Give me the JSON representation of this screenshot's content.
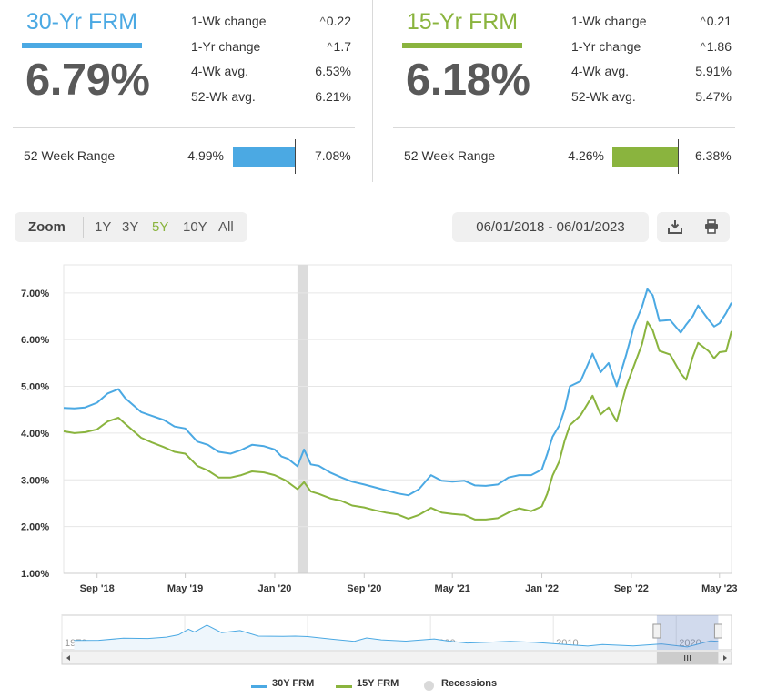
{
  "products": [
    {
      "title": "30-Yr FRM",
      "rate": "6.79%",
      "color": "#4ba9e3",
      "stats": [
        {
          "label": "1-Wk change",
          "value": "0.22",
          "caret": "^"
        },
        {
          "label": "1-Yr change",
          "value": "1.7",
          "caret": "^"
        },
        {
          "label": "4-Wk avg.",
          "value": "6.53%",
          "caret": ""
        },
        {
          "label": "52-Wk avg.",
          "value": "6.21%",
          "caret": ""
        }
      ],
      "range": {
        "label": "52 Week Range",
        "low": "4.99%",
        "high": "7.08%",
        "marker_fraction": 0.85
      }
    },
    {
      "title": "15-Yr FRM",
      "rate": "6.18%",
      "color": "#8ab43e",
      "stats": [
        {
          "label": "1-Wk change",
          "value": "0.21",
          "caret": "^"
        },
        {
          "label": "1-Yr change",
          "value": "1.86",
          "caret": "^"
        },
        {
          "label": "4-Wk avg.",
          "value": "5.91%",
          "caret": ""
        },
        {
          "label": "52-Wk avg.",
          "value": "5.47%",
          "caret": ""
        }
      ],
      "range": {
        "label": "52 Week Range",
        "low": "4.26%",
        "high": "6.38%",
        "marker_fraction": 0.9
      }
    }
  ],
  "toolbar": {
    "zoom_label": "Zoom",
    "zoom_options": [
      "1Y",
      "3Y",
      "5Y",
      "10Y",
      "All"
    ],
    "active_zoom": "5Y",
    "date_range": "06/01/2018 - 06/01/2023",
    "download_icon": "download-icon",
    "print_icon": "printer-icon"
  },
  "chart_data": {
    "type": "line",
    "y_ticks": [
      "1.00%",
      "2.00%",
      "3.00%",
      "4.00%",
      "5.00%",
      "6.00%",
      "7.00%"
    ],
    "ylim": [
      1,
      7.6
    ],
    "x_ticks": [
      {
        "label": "Sep '18",
        "t": 2018.67
      },
      {
        "label": "May '19",
        "t": 2019.33
      },
      {
        "label": "Jan '20",
        "t": 2020.0
      },
      {
        "label": "Sep '20",
        "t": 2020.67
      },
      {
        "label": "May '21",
        "t": 2021.33
      },
      {
        "label": "Jan '22",
        "t": 2022.0
      },
      {
        "label": "Sep '22",
        "t": 2022.67
      },
      {
        "label": "May '23",
        "t": 2023.33
      }
    ],
    "xlim": [
      2018.42,
      2023.42
    ],
    "recessions": [
      [
        2020.17,
        2020.25
      ]
    ],
    "series": [
      {
        "name": "30Y FRM",
        "color": "#4ba9e3",
        "points": [
          [
            2018.42,
            4.54
          ],
          [
            2018.5,
            4.53
          ],
          [
            2018.58,
            4.55
          ],
          [
            2018.67,
            4.65
          ],
          [
            2018.75,
            4.85
          ],
          [
            2018.83,
            4.94
          ],
          [
            2018.88,
            4.75
          ],
          [
            2019.0,
            4.45
          ],
          [
            2019.08,
            4.37
          ],
          [
            2019.17,
            4.28
          ],
          [
            2019.25,
            4.14
          ],
          [
            2019.33,
            4.1
          ],
          [
            2019.42,
            3.82
          ],
          [
            2019.5,
            3.75
          ],
          [
            2019.58,
            3.6
          ],
          [
            2019.67,
            3.56
          ],
          [
            2019.75,
            3.64
          ],
          [
            2019.83,
            3.75
          ],
          [
            2019.92,
            3.72
          ],
          [
            2020.0,
            3.65
          ],
          [
            2020.05,
            3.5
          ],
          [
            2020.1,
            3.45
          ],
          [
            2020.17,
            3.29
          ],
          [
            2020.22,
            3.65
          ],
          [
            2020.27,
            3.33
          ],
          [
            2020.33,
            3.3
          ],
          [
            2020.42,
            3.15
          ],
          [
            2020.5,
            3.05
          ],
          [
            2020.58,
            2.96
          ],
          [
            2020.67,
            2.9
          ],
          [
            2020.75,
            2.84
          ],
          [
            2020.83,
            2.78
          ],
          [
            2020.92,
            2.71
          ],
          [
            2021.0,
            2.67
          ],
          [
            2021.08,
            2.8
          ],
          [
            2021.17,
            3.1
          ],
          [
            2021.25,
            2.98
          ],
          [
            2021.33,
            2.96
          ],
          [
            2021.42,
            2.98
          ],
          [
            2021.5,
            2.88
          ],
          [
            2021.58,
            2.87
          ],
          [
            2021.67,
            2.9
          ],
          [
            2021.75,
            3.05
          ],
          [
            2021.83,
            3.1
          ],
          [
            2021.92,
            3.1
          ],
          [
            2022.0,
            3.22
          ],
          [
            2022.04,
            3.55
          ],
          [
            2022.08,
            3.92
          ],
          [
            2022.13,
            4.16
          ],
          [
            2022.17,
            4.5
          ],
          [
            2022.21,
            5.0
          ],
          [
            2022.29,
            5.11
          ],
          [
            2022.38,
            5.7
          ],
          [
            2022.44,
            5.3
          ],
          [
            2022.5,
            5.5
          ],
          [
            2022.56,
            5.0
          ],
          [
            2022.63,
            5.66
          ],
          [
            2022.69,
            6.29
          ],
          [
            2022.75,
            6.7
          ],
          [
            2022.79,
            7.08
          ],
          [
            2022.83,
            6.95
          ],
          [
            2022.88,
            6.4
          ],
          [
            2022.96,
            6.42
          ],
          [
            2023.04,
            6.15
          ],
          [
            2023.08,
            6.32
          ],
          [
            2023.13,
            6.5
          ],
          [
            2023.17,
            6.73
          ],
          [
            2023.25,
            6.42
          ],
          [
            2023.29,
            6.28
          ],
          [
            2023.33,
            6.35
          ],
          [
            2023.38,
            6.57
          ],
          [
            2023.42,
            6.79
          ]
        ]
      },
      {
        "name": "15Y FRM",
        "color": "#8ab43e",
        "points": [
          [
            2018.42,
            4.04
          ],
          [
            2018.5,
            4.0
          ],
          [
            2018.58,
            4.02
          ],
          [
            2018.67,
            4.08
          ],
          [
            2018.75,
            4.25
          ],
          [
            2018.83,
            4.33
          ],
          [
            2018.88,
            4.2
          ],
          [
            2019.0,
            3.9
          ],
          [
            2019.08,
            3.8
          ],
          [
            2019.17,
            3.7
          ],
          [
            2019.25,
            3.6
          ],
          [
            2019.33,
            3.56
          ],
          [
            2019.42,
            3.3
          ],
          [
            2019.5,
            3.2
          ],
          [
            2019.58,
            3.05
          ],
          [
            2019.67,
            3.05
          ],
          [
            2019.75,
            3.1
          ],
          [
            2019.83,
            3.18
          ],
          [
            2019.92,
            3.16
          ],
          [
            2020.0,
            3.1
          ],
          [
            2020.08,
            2.99
          ],
          [
            2020.17,
            2.8
          ],
          [
            2020.22,
            2.95
          ],
          [
            2020.27,
            2.75
          ],
          [
            2020.33,
            2.7
          ],
          [
            2020.42,
            2.6
          ],
          [
            2020.5,
            2.55
          ],
          [
            2020.58,
            2.45
          ],
          [
            2020.67,
            2.41
          ],
          [
            2020.75,
            2.35
          ],
          [
            2020.83,
            2.3
          ],
          [
            2020.92,
            2.26
          ],
          [
            2021.0,
            2.17
          ],
          [
            2021.08,
            2.25
          ],
          [
            2021.17,
            2.4
          ],
          [
            2021.25,
            2.3
          ],
          [
            2021.33,
            2.27
          ],
          [
            2021.42,
            2.25
          ],
          [
            2021.5,
            2.15
          ],
          [
            2021.58,
            2.15
          ],
          [
            2021.67,
            2.18
          ],
          [
            2021.75,
            2.3
          ],
          [
            2021.83,
            2.39
          ],
          [
            2021.92,
            2.33
          ],
          [
            2022.0,
            2.43
          ],
          [
            2022.04,
            2.7
          ],
          [
            2022.08,
            3.09
          ],
          [
            2022.13,
            3.39
          ],
          [
            2022.17,
            3.83
          ],
          [
            2022.21,
            4.17
          ],
          [
            2022.29,
            4.38
          ],
          [
            2022.38,
            4.8
          ],
          [
            2022.44,
            4.4
          ],
          [
            2022.5,
            4.55
          ],
          [
            2022.56,
            4.25
          ],
          [
            2022.63,
            4.98
          ],
          [
            2022.69,
            5.44
          ],
          [
            2022.75,
            5.9
          ],
          [
            2022.79,
            6.38
          ],
          [
            2022.83,
            6.2
          ],
          [
            2022.88,
            5.76
          ],
          [
            2022.96,
            5.68
          ],
          [
            2023.04,
            5.28
          ],
          [
            2023.08,
            5.14
          ],
          [
            2023.13,
            5.63
          ],
          [
            2023.17,
            5.93
          ],
          [
            2023.25,
            5.75
          ],
          [
            2023.29,
            5.6
          ],
          [
            2023.33,
            5.73
          ],
          [
            2023.38,
            5.75
          ],
          [
            2023.42,
            6.18
          ]
        ]
      }
    ],
    "navigator": {
      "x_ticks": [
        "1970",
        "1980",
        "1990",
        "2000",
        "2010",
        "2020"
      ],
      "x_tick_years": [
        1970,
        1980,
        1990,
        2000,
        2010,
        2020
      ],
      "xlim": [
        1970,
        2024.5
      ],
      "window": [
        2018.42,
        2023.42
      ],
      "points": [
        [
          1971,
          7.4
        ],
        [
          1973,
          7.5
        ],
        [
          1975,
          9.0
        ],
        [
          1977,
          8.8
        ],
        [
          1978.5,
          9.8
        ],
        [
          1979.5,
          11.5
        ],
        [
          1980.3,
          15.5
        ],
        [
          1980.8,
          13.5
        ],
        [
          1981.8,
          18.4
        ],
        [
          1983,
          13.0
        ],
        [
          1984.5,
          14.5
        ],
        [
          1986,
          10.5
        ],
        [
          1988,
          10.3
        ],
        [
          1989,
          10.5
        ],
        [
          1990,
          10.2
        ],
        [
          1992,
          8.3
        ],
        [
          1993.8,
          6.8
        ],
        [
          1994.8,
          9.2
        ],
        [
          1996,
          7.8
        ],
        [
          1998,
          6.9
        ],
        [
          2000.3,
          8.5
        ],
        [
          2001.5,
          6.9
        ],
        [
          2003,
          5.5
        ],
        [
          2006.5,
          6.7
        ],
        [
          2008.5,
          6.0
        ],
        [
          2011,
          4.5
        ],
        [
          2012.8,
          3.4
        ],
        [
          2014,
          4.4
        ],
        [
          2016.5,
          3.5
        ],
        [
          2018.8,
          4.9
        ],
        [
          2020.9,
          2.7
        ],
        [
          2022.8,
          7.1
        ],
        [
          2023.42,
          6.79
        ]
      ]
    },
    "legend": [
      {
        "name": "30Y FRM",
        "color": "#4ba9e3",
        "kind": "line"
      },
      {
        "name": "15Y FRM",
        "color": "#8ab43e",
        "kind": "line"
      },
      {
        "name": "Recessions",
        "color": "#d9d9d9",
        "kind": "dot"
      }
    ]
  }
}
